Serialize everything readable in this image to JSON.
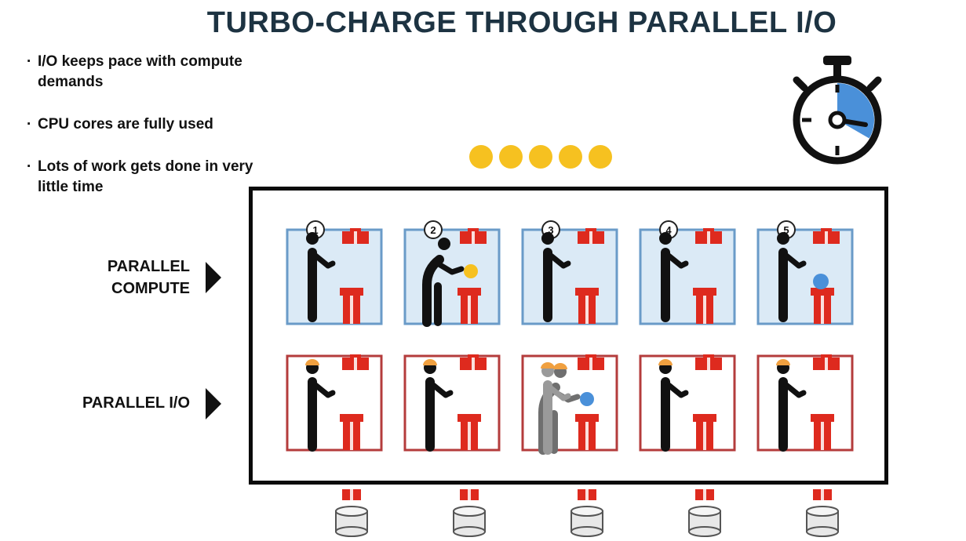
{
  "title": "TURBO-CHARGE THROUGH PARALLEL I/O",
  "bullets": [
    "I/O keeps pace with compute demands",
    "CPU cores are fully used",
    "Lots of work gets done in very little time"
  ],
  "rows": {
    "compute_label": "PARALLEL COMPUTE",
    "io_label": "PARALLEL I/O"
  },
  "worker_numbers": [
    "1",
    "2",
    "3",
    "4",
    "5"
  ],
  "tokens_count": 5,
  "colors": {
    "title": "#1d3342",
    "compute_fill": "#dbeaf6",
    "compute_border": "#6a9bc8",
    "io_border": "#b43c3c",
    "pipe_red": "#de2a1e",
    "token_yellow": "#f6c120",
    "task_blue": "#4a90d9",
    "hardhat_orange": "#f0a040",
    "stopwatch_blue": "#4a90d9"
  }
}
